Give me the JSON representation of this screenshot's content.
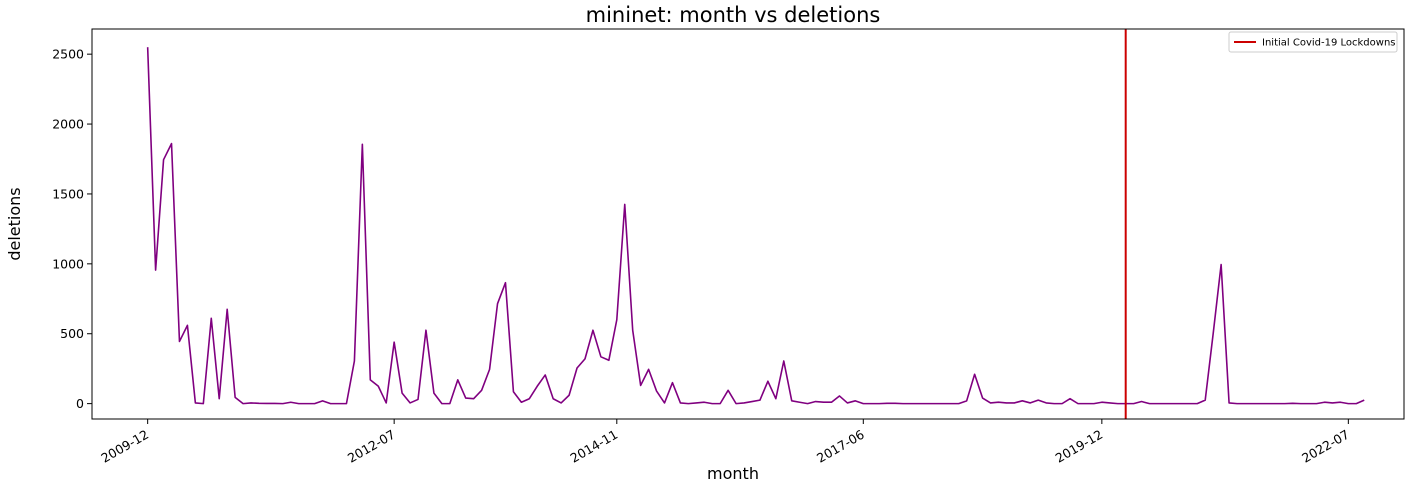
{
  "chart_data": {
    "type": "line",
    "title": "mininet: month vs deletions",
    "xlabel": "month",
    "ylabel": "deletions",
    "ylim": [
      -110,
      2680
    ],
    "yticks": [
      0,
      500,
      1000,
      1500,
      2000,
      2500
    ],
    "xtick_labels": [
      "2009-12",
      "2012-07",
      "2014-11",
      "2017-06",
      "2019-12",
      "2022-07"
    ],
    "xtick_positions": [
      0,
      31,
      59,
      90,
      120,
      151
    ],
    "x_range": [
      -7,
      158
    ],
    "line_color": "#800080",
    "series": [
      {
        "values": [
          2550,
          955,
          1745,
          1860,
          445,
          560,
          5,
          0,
          610,
          35,
          675,
          45,
          0,
          5,
          2,
          1,
          1,
          0,
          10,
          0,
          0,
          0,
          20,
          0,
          0,
          0,
          305,
          1855,
          170,
          125,
          5,
          440,
          75,
          5,
          30,
          525,
          75,
          0,
          0,
          170,
          40,
          35,
          95,
          245,
          715,
          865,
          85,
          10,
          35,
          125,
          205,
          35,
          5,
          60,
          255,
          320,
          525,
          335,
          310,
          600,
          1425,
          525,
          130,
          245,
          90,
          5,
          150,
          5,
          0,
          5,
          10,
          0,
          0,
          95,
          0,
          5,
          15,
          25,
          160,
          35,
          305,
          20,
          10,
          0,
          15,
          10,
          10,
          55,
          5,
          20,
          0,
          0,
          0,
          2,
          2,
          0,
          0,
          0,
          0,
          0,
          0,
          0,
          0,
          20,
          210,
          40,
          5,
          10,
          5,
          5,
          20,
          5,
          25,
          5,
          0,
          0,
          35,
          0,
          0,
          0,
          10,
          5,
          0,
          0,
          0,
          15,
          0,
          0,
          0,
          0,
          0,
          0,
          0,
          25,
          500,
          995,
          5,
          0,
          0,
          0,
          0,
          0,
          0,
          0,
          2,
          0,
          0,
          0,
          10,
          5,
          10,
          0,
          0,
          25
        ]
      }
    ],
    "vline": {
      "x": 123,
      "label": "Initial Covid-19 Lockdowns",
      "color": "#cc0000"
    },
    "legend_position": "top-right"
  }
}
